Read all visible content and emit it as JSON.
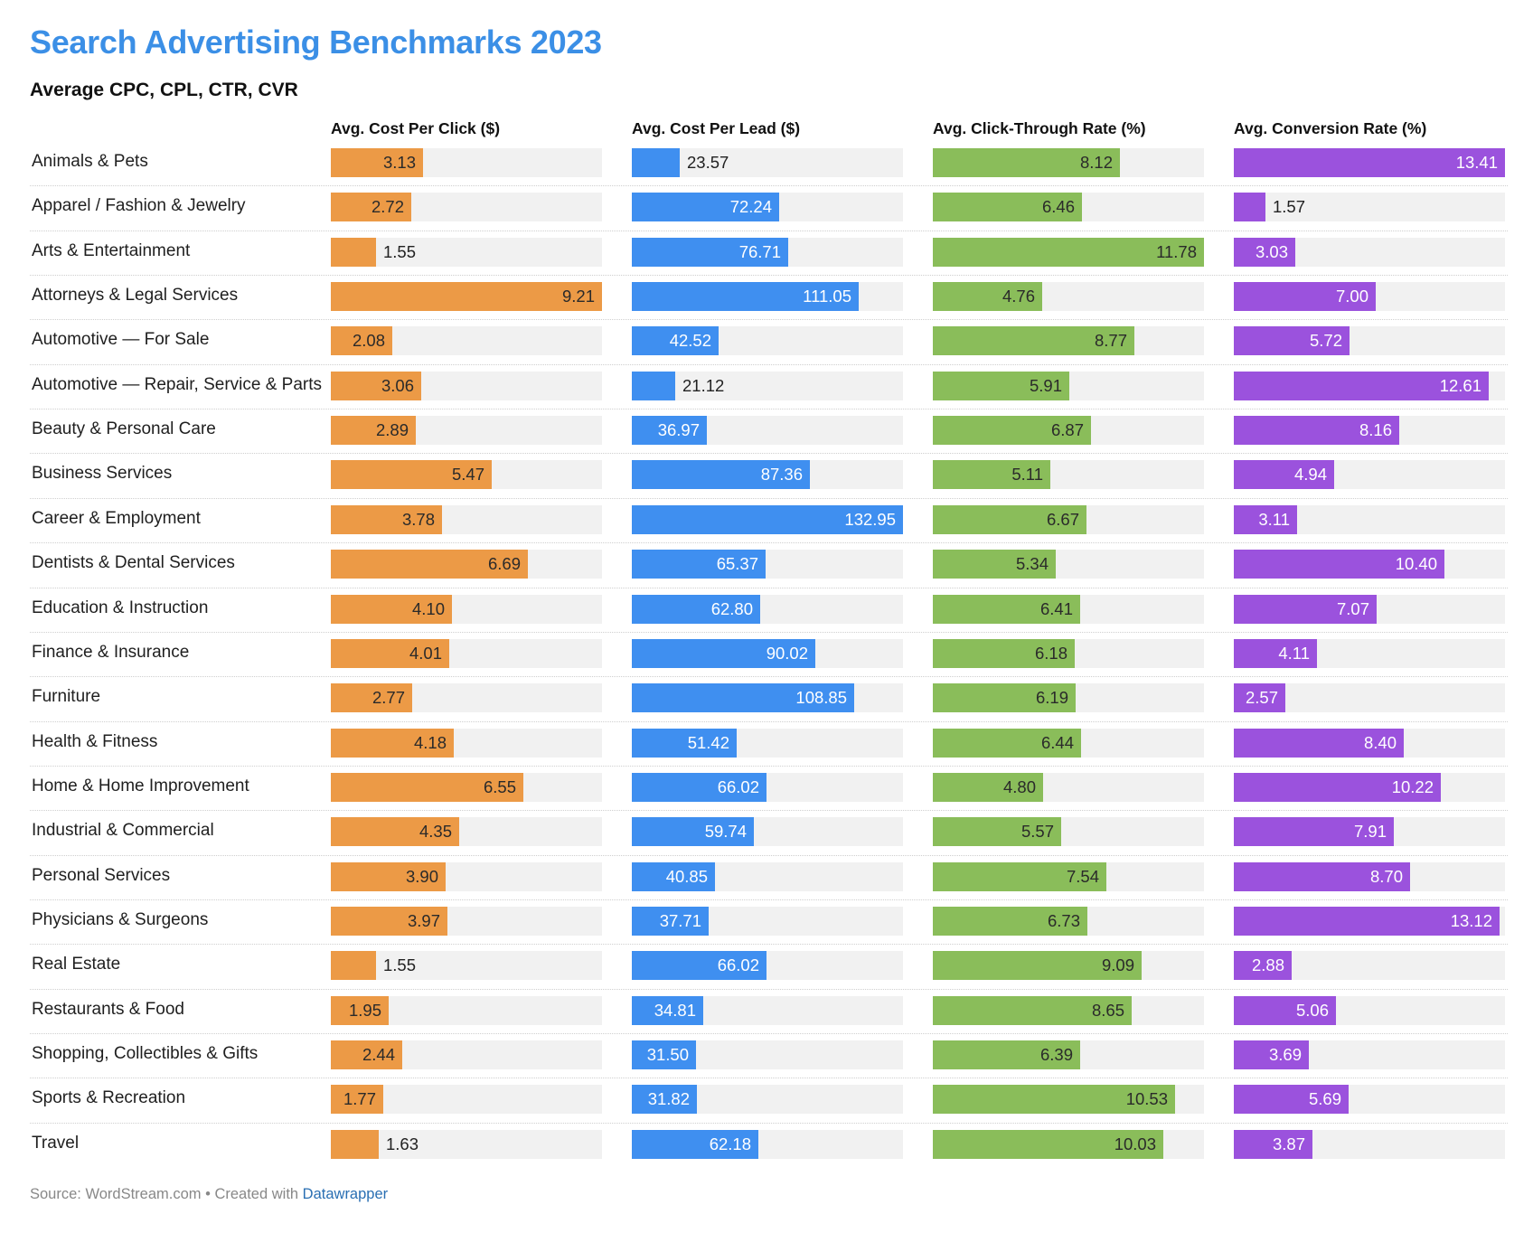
{
  "title": "Search Advertising Benchmarks 2023",
  "subtitle": "Average CPC, CPL, CTR, CVR",
  "footer": {
    "source_text": "Source: WordStream.com • Created with ",
    "link_text": "Datawrapper"
  },
  "colors": {
    "title": "#3b8fe6",
    "cpc": "#ec9a46",
    "cpl": "#3f8ff0",
    "ctr": "#8abd5a",
    "cvr": "#9b52dd",
    "track": "#f1f1f1"
  },
  "chart_data": {
    "type": "bar",
    "orientation": "horizontal",
    "categories": [
      "Animals & Pets",
      "Apparel / Fashion & Jewelry",
      "Arts & Entertainment",
      "Attorneys & Legal Services",
      "Automotive — For Sale",
      "Automotive — Repair, Service & Parts",
      "Beauty & Personal Care",
      "Business Services",
      "Career & Employment",
      "Dentists & Dental Services",
      "Education & Instruction",
      "Finance & Insurance",
      "Furniture",
      "Health & Fitness",
      "Home & Home Improvement",
      "Industrial & Commercial",
      "Personal Services",
      "Physicians & Surgeons",
      "Real Estate",
      "Restaurants & Food",
      "Shopping, Collectibles & Gifts",
      "Sports & Recreation",
      "Travel"
    ],
    "series": [
      {
        "name": "Avg. Cost Per Click ($)",
        "key": "cpc",
        "max": 9.21,
        "values": [
          "3.13",
          "2.72",
          "1.55",
          "9.21",
          "2.08",
          "3.06",
          "2.89",
          "5.47",
          "3.78",
          "6.69",
          "4.10",
          "4.01",
          "2.77",
          "4.18",
          "6.55",
          "4.35",
          "3.90",
          "3.97",
          "1.55",
          "1.95",
          "2.44",
          "1.77",
          "1.63"
        ]
      },
      {
        "name": "Avg. Cost Per Lead ($)",
        "key": "cpl",
        "max": 132.95,
        "values": [
          "23.57",
          "72.24",
          "76.71",
          "111.05",
          "42.52",
          "21.12",
          "36.97",
          "87.36",
          "132.95",
          "65.37",
          "62.80",
          "90.02",
          "108.85",
          "51.42",
          "66.02",
          "59.74",
          "40.85",
          "37.71",
          "66.02",
          "34.81",
          "31.50",
          "31.82",
          "62.18"
        ]
      },
      {
        "name": "Avg. Click-Through Rate (%)",
        "key": "ctr",
        "max": 11.78,
        "values": [
          "8.12",
          "6.46",
          "11.78",
          "4.76",
          "8.77",
          "5.91",
          "6.87",
          "5.11",
          "6.67",
          "5.34",
          "6.41",
          "6.18",
          "6.19",
          "6.44",
          "4.80",
          "5.57",
          "7.54",
          "6.73",
          "9.09",
          "8.65",
          "6.39",
          "10.53",
          "10.03"
        ]
      },
      {
        "name": "Avg. Conversion Rate (%)",
        "key": "cvr",
        "max": 13.41,
        "values": [
          "13.41",
          "1.57",
          "3.03",
          "7.00",
          "5.72",
          "12.61",
          "8.16",
          "4.94",
          "3.11",
          "10.40",
          "7.07",
          "4.11",
          "2.57",
          "8.40",
          "10.22",
          "7.91",
          "8.70",
          "13.12",
          "2.88",
          "5.06",
          "3.69",
          "5.69",
          "3.87"
        ]
      }
    ]
  }
}
